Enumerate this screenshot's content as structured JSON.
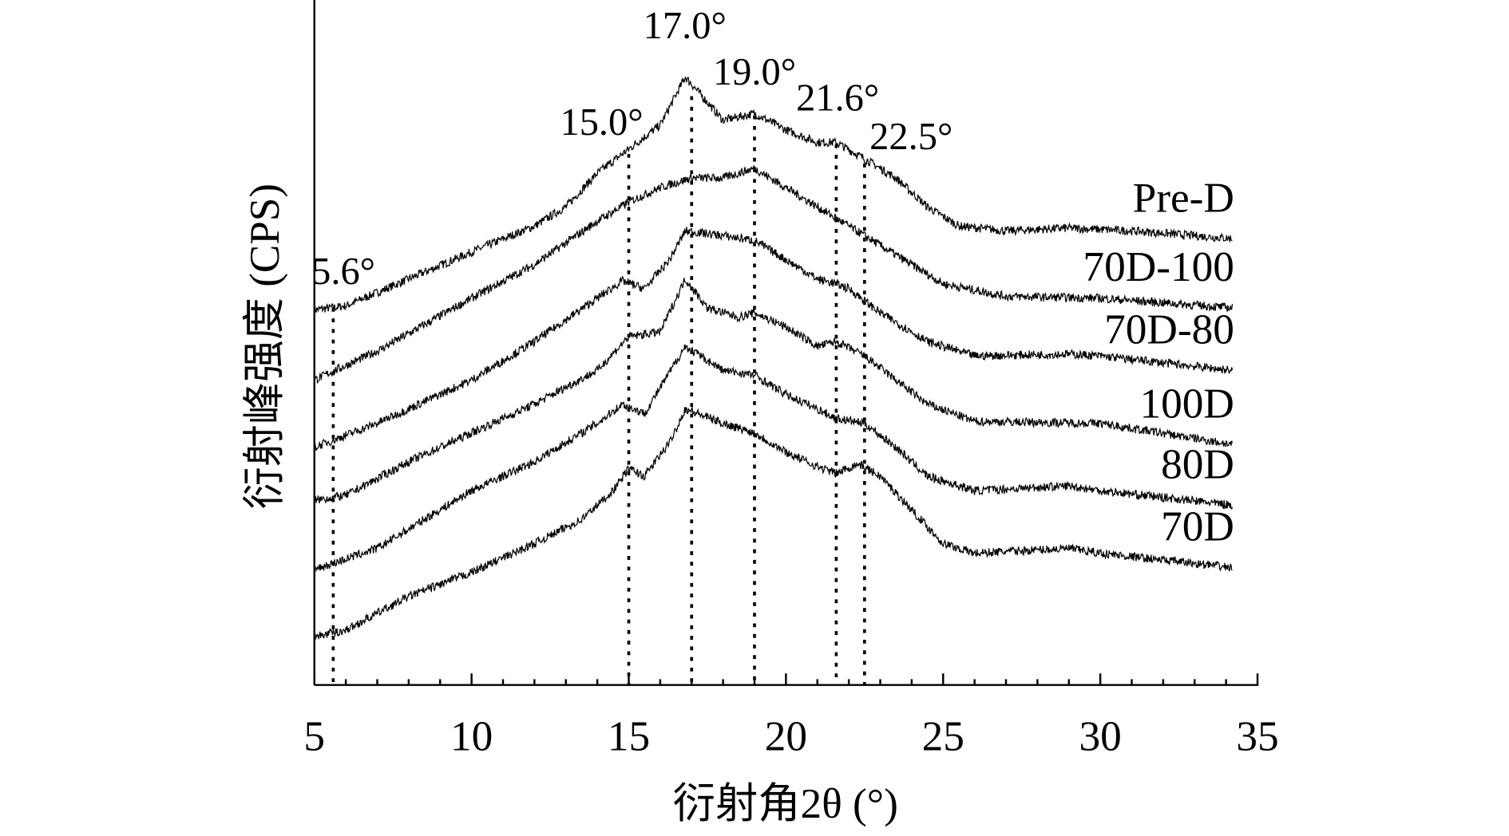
{
  "chart_data": {
    "type": "line",
    "title": "",
    "xlabel": "衍射角2θ (°)",
    "ylabel": "衍射峰强度 (CPS)",
    "xlim": [
      5,
      35
    ],
    "xticks": [
      "5",
      "10",
      "15",
      "20",
      "25",
      "30",
      "35"
    ],
    "xtick_values": [
      5,
      10,
      15,
      20,
      25,
      30,
      35
    ],
    "minor_tick_step": 1,
    "y_units": "arbitrary (stacked, offset)",
    "ylim": [
      0,
      712
    ],
    "grid": false,
    "legend": "inline labels at right end of each curve",
    "series": [
      {
        "name": "Pre-D",
        "x": [
          5,
          6,
          8,
          10,
          12,
          13,
          14,
          15,
          16,
          16.8,
          17.2,
          18,
          19,
          20,
          21,
          21.6,
          22.5,
          23.5,
          24.5,
          25.5,
          27,
          29,
          31,
          34.2
        ],
        "y": [
          390,
          394,
          422,
          450,
          477,
          497,
          532,
          557,
          582,
          632,
          617,
          587,
          594,
          577,
          564,
          564,
          547,
          527,
          497,
          477,
          472,
          475,
          472,
          464
        ]
      },
      {
        "name": "70D-100",
        "x": [
          5,
          7,
          10,
          12,
          14,
          15,
          16,
          17,
          18,
          19,
          20,
          21,
          22,
          23,
          24,
          25,
          27,
          30,
          34.2
        ],
        "y": [
          317,
          347,
          402,
          437,
          482,
          502,
          517,
          527,
          527,
          537,
          517,
          497,
          477,
          457,
          437,
          417,
          404,
          402,
          392
        ]
      },
      {
        "name": "70D-80",
        "x": [
          5,
          7,
          10,
          12,
          14,
          14.8,
          15.5,
          16.3,
          16.8,
          18,
          19,
          20,
          21,
          21.6,
          22,
          23,
          24.5,
          26,
          29,
          30,
          34.2
        ],
        "y": [
          247,
          272,
          317,
          357,
          402,
          420,
          412,
          442,
          472,
          467,
          462,
          442,
          422,
          417,
          412,
          387,
          357,
          342,
          344,
          342,
          327
        ]
      },
      {
        "name": "100D",
        "x": [
          5,
          6,
          8,
          10,
          12,
          14,
          15,
          16,
          16.8,
          17.5,
          18.5,
          19,
          20,
          21,
          21.6,
          22.5,
          23.5,
          24.5,
          26,
          30,
          34.2
        ],
        "y": [
          192,
          197,
          232,
          262,
          292,
          327,
          362,
          367,
          422,
          392,
          382,
          387,
          372,
          352,
          357,
          342,
          317,
          292,
          274,
          272,
          250
        ]
      },
      {
        "name": "80D",
        "x": [
          5,
          7,
          10,
          12,
          14,
          14.8,
          15.5,
          16.8,
          18,
          19,
          20,
          21,
          21.6,
          22.5,
          23.5,
          24.5,
          26,
          29,
          30,
          34.2
        ],
        "y": [
          120,
          142,
          202,
          232,
          272,
          292,
          282,
          352,
          327,
          322,
          302,
          287,
          277,
          272,
          247,
          217,
          202,
          207,
          202,
          187
        ]
      },
      {
        "name": "70D",
        "x": [
          5,
          6,
          8,
          10,
          12,
          13.5,
          14.5,
          15,
          15.5,
          16.3,
          16.8,
          18,
          19,
          20,
          21,
          21.6,
          22.3,
          23,
          24,
          25,
          26,
          29,
          30,
          34.2
        ],
        "y": [
          50,
          57,
          92,
          117,
          147,
          172,
          202,
          225,
          217,
          252,
          287,
          272,
          262,
          242,
          227,
          220,
          230,
          217,
          182,
          147,
          137,
          142,
          137,
          122
        ]
      }
    ],
    "annotations": [
      {
        "label": "5.6°",
        "x": 5.6,
        "line_top": 392
      },
      {
        "label": "15.0°",
        "x": 15.0,
        "line_top": 552
      },
      {
        "label": "17.0°",
        "x": 17.0,
        "line_top": 612
      },
      {
        "label": "19.0°",
        "x": 19.0,
        "line_top": 592
      },
      {
        "label": "21.6°",
        "x": 21.6,
        "line_top": 562
      },
      {
        "label": "22.5°",
        "x": 22.5,
        "line_top": 542
      }
    ],
    "colors": {
      "line": "#000000",
      "axis": "#000000"
    }
  }
}
